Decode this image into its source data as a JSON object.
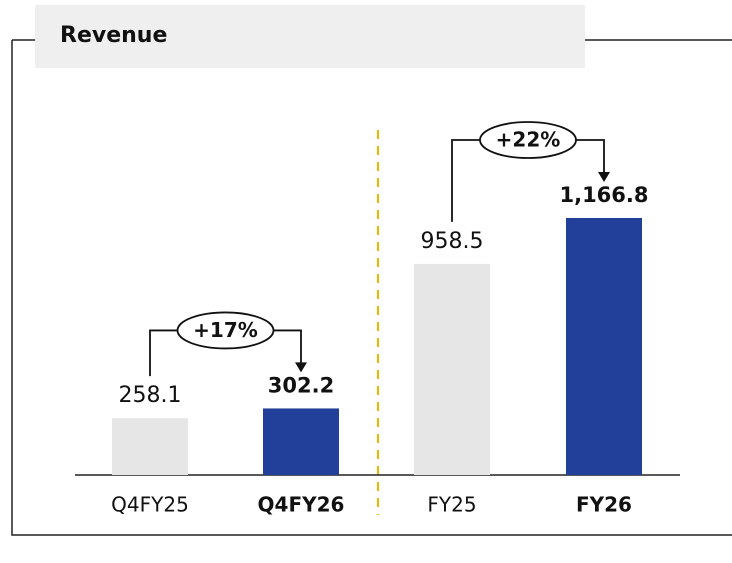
{
  "title": "Revenue",
  "chart_data": [
    {
      "type": "bar",
      "categories": [
        "Q4FY25",
        "Q4FY26"
      ],
      "values": [
        258.1,
        302.2
      ],
      "colors": [
        "#e6e6e6",
        "#22409a"
      ],
      "annotation": "+17%"
    },
    {
      "type": "bar",
      "categories": [
        "FY25",
        "FY26"
      ],
      "values": [
        958.5,
        1166.8
      ],
      "value_labels": [
        "958.5",
        "1,166.8"
      ],
      "colors": [
        "#e6e6e6",
        "#22409a"
      ],
      "annotation": "+22%"
    }
  ]
}
